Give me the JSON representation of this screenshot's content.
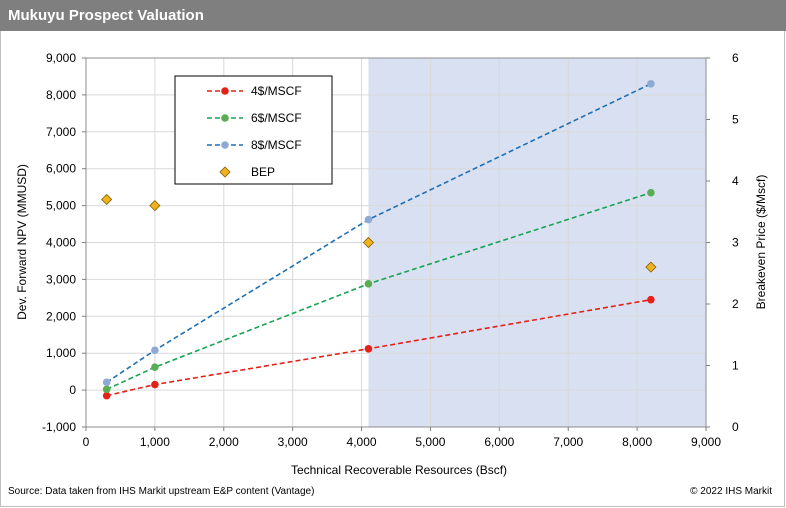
{
  "header": {
    "title": "Mukuyu Prospect Valuation"
  },
  "footer": {
    "source": "Source: Data taken from IHS Markit upstream E&P content (Vantage)",
    "copyright": "© 2022 IHS Markit"
  },
  "chart_data": {
    "type": "line",
    "xlabel": "Technical Recoverable Resources (Bscf)",
    "ylabel": "Dev.  Forward  NPV (MMUSD)",
    "y2label": "Breakeven Price ($/Mscf)",
    "xlim": [
      0,
      9000
    ],
    "ylim": [
      -1000,
      9000
    ],
    "y2lim": [
      0,
      6
    ],
    "x_ticks": [
      "0",
      "1,000",
      "2,000",
      "3,000",
      "4,000",
      "5,000",
      "6,000",
      "7,000",
      "8,000",
      "9,000"
    ],
    "y_ticks": [
      "-1,000",
      "0",
      "1,000",
      "2,000",
      "3,000",
      "4,000",
      "5,000",
      "6,000",
      "7,000",
      "8,000",
      "9,000"
    ],
    "y2_ticks": [
      "0",
      "1",
      "2",
      "3",
      "4",
      "5",
      "6"
    ],
    "shaded_region": {
      "x_from": 4100,
      "x_to": 9000,
      "color": "#d9e0f1"
    },
    "grid": true,
    "legend_position": "top-left",
    "series": [
      {
        "name": "4$/MSCF",
        "color": "#e32119",
        "marker": "circle",
        "axis": "left",
        "x": [
          300,
          1000,
          4100,
          8200
        ],
        "values": [
          -150,
          150,
          1120,
          2450
        ]
      },
      {
        "name": "6$/MSCF",
        "color": "#5aad52",
        "line_color": "#17a355",
        "marker": "circle",
        "axis": "left",
        "x": [
          300,
          1000,
          4100,
          8200
        ],
        "values": [
          20,
          620,
          2880,
          5350
        ]
      },
      {
        "name": "8$/MSCF",
        "color": "#8ea9d6",
        "line_color": "#1f6fb6",
        "marker": "circle",
        "axis": "left",
        "x": [
          300,
          1000,
          4100,
          8200
        ],
        "values": [
          210,
          1080,
          4620,
          8300
        ]
      },
      {
        "name": "BEP",
        "color": "#f2b21f",
        "marker": "diamond",
        "axis": "right",
        "line": false,
        "x": [
          300,
          1000,
          4100,
          8200
        ],
        "values": [
          3.7,
          3.6,
          3.0,
          2.6
        ]
      }
    ]
  }
}
